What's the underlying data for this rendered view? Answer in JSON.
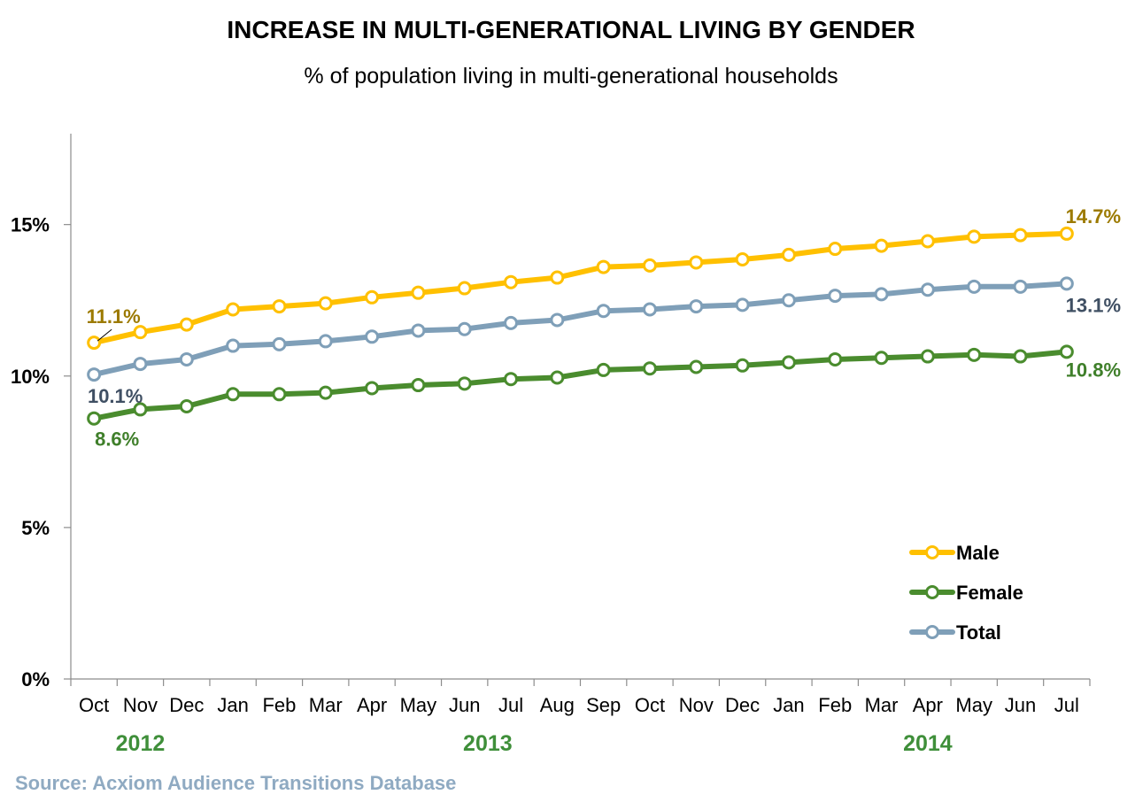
{
  "chart_data": {
    "type": "line",
    "title": "INCREASE IN MULTI-GENERATIONAL LIVING BY GENDER",
    "subtitle": "% of population living in multi-generational households",
    "categories": [
      "Oct",
      "Nov",
      "Dec",
      "Jan",
      "Feb",
      "Mar",
      "Apr",
      "May",
      "Jun",
      "Jul",
      "Aug",
      "Sep",
      "Oct",
      "Nov",
      "Dec",
      "Jan",
      "Feb",
      "Mar",
      "Apr",
      "May",
      "Jun",
      "Jul"
    ],
    "years": [
      {
        "label": "2012",
        "from_index": 0,
        "to_index": 2
      },
      {
        "label": "2013",
        "from_index": 3,
        "to_index": 14
      },
      {
        "label": "2014",
        "from_index": 15,
        "to_index": 21
      }
    ],
    "ylim": [
      0,
      18
    ],
    "yticks": [
      0,
      5,
      10,
      15
    ],
    "ytick_labels": [
      "0%",
      "5%",
      "10%",
      "15%"
    ],
    "series": [
      {
        "name": "Male",
        "color": "#FFC000",
        "label_color": "#9C7A00",
        "values": [
          11.1,
          11.45,
          11.7,
          12.2,
          12.3,
          12.4,
          12.6,
          12.75,
          12.9,
          13.1,
          13.25,
          13.6,
          13.65,
          13.75,
          13.85,
          14.0,
          14.2,
          14.3,
          14.45,
          14.6,
          14.65,
          14.7
        ]
      },
      {
        "name": "Female",
        "color": "#4A8C2E",
        "label_color": "#3F7F2A",
        "values": [
          8.6,
          8.9,
          9.0,
          9.4,
          9.4,
          9.45,
          9.6,
          9.7,
          9.75,
          9.9,
          9.95,
          10.2,
          10.25,
          10.3,
          10.35,
          10.45,
          10.55,
          10.6,
          10.65,
          10.7,
          10.65,
          10.8
        ]
      },
      {
        "name": "Total",
        "color": "#7F9FB8",
        "label_color": "#3F4F63",
        "values": [
          10.05,
          10.4,
          10.55,
          11.0,
          11.05,
          11.15,
          11.3,
          11.5,
          11.55,
          11.75,
          11.85,
          12.15,
          12.2,
          12.3,
          12.35,
          12.5,
          12.65,
          12.7,
          12.85,
          12.95,
          12.95,
          13.05
        ]
      }
    ],
    "data_labels": [
      {
        "series": "Male",
        "index": 0,
        "text": "11.1%"
      },
      {
        "series": "Male",
        "index": 21,
        "text": "14.7%"
      },
      {
        "series": "Total",
        "index": 0,
        "text": "10.1%"
      },
      {
        "series": "Total",
        "index": 21,
        "text": "13.1%"
      },
      {
        "series": "Female",
        "index": 0,
        "text": "8.6%"
      },
      {
        "series": "Female",
        "index": 21,
        "text": "10.8%"
      }
    ],
    "legend": {
      "placement": "bottom-right",
      "items": [
        "Male",
        "Female",
        "Total"
      ]
    },
    "grid": false,
    "year_label_color": "#3F8F3A"
  },
  "source": {
    "text": "Source: Acxiom Audience Transitions Database",
    "color": "#8FAAC2"
  }
}
